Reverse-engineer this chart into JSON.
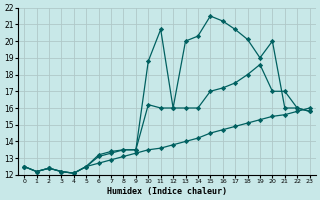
{
  "xlabel": "Humidex (Indice chaleur)",
  "bg_color": "#c8e8e8",
  "grid_color": "#b0c8c8",
  "line_color": "#006060",
  "xlim": [
    -0.5,
    23.5
  ],
  "ylim": [
    12,
    22
  ],
  "xticks": [
    0,
    1,
    2,
    3,
    4,
    5,
    6,
    7,
    8,
    9,
    10,
    11,
    12,
    13,
    14,
    15,
    16,
    17,
    18,
    19,
    20,
    21,
    22,
    23
  ],
  "yticks": [
    12,
    13,
    14,
    15,
    16,
    17,
    18,
    19,
    20,
    21,
    22
  ],
  "line1_x": [
    0,
    1,
    2,
    3,
    4,
    5,
    6,
    7,
    8,
    9,
    10,
    11,
    12,
    13,
    14,
    15,
    16,
    17,
    18,
    19,
    20,
    21,
    22,
    23
  ],
  "line1_y": [
    12.5,
    12.2,
    12.4,
    12.2,
    12.1,
    12.5,
    13.2,
    13.4,
    13.5,
    13.5,
    18.8,
    20.7,
    16.0,
    20.0,
    20.3,
    21.5,
    21.2,
    20.7,
    20.1,
    19.0,
    20.0,
    16.0,
    16.0,
    15.8
  ],
  "line2_x": [
    0,
    1,
    2,
    3,
    4,
    5,
    6,
    7,
    8,
    9,
    10,
    11,
    12,
    13,
    14,
    15,
    16,
    17,
    18,
    19,
    20,
    21,
    22,
    23
  ],
  "line2_y": [
    12.5,
    12.2,
    12.4,
    12.2,
    12.1,
    12.5,
    13.1,
    13.3,
    13.5,
    13.5,
    16.2,
    16.0,
    16.0,
    16.0,
    16.0,
    17.0,
    17.2,
    17.5,
    18.0,
    18.6,
    17.0,
    17.0,
    16.0,
    15.8
  ],
  "line3_x": [
    0,
    1,
    2,
    3,
    4,
    5,
    6,
    7,
    8,
    9,
    10,
    11,
    12,
    13,
    14,
    15,
    16,
    17,
    18,
    19,
    20,
    21,
    22,
    23
  ],
  "line3_y": [
    12.5,
    12.2,
    12.4,
    12.2,
    12.1,
    12.5,
    12.7,
    12.9,
    13.1,
    13.3,
    13.5,
    13.6,
    13.8,
    14.0,
    14.2,
    14.5,
    14.7,
    14.9,
    15.1,
    15.3,
    15.5,
    15.6,
    15.8,
    16.0
  ]
}
